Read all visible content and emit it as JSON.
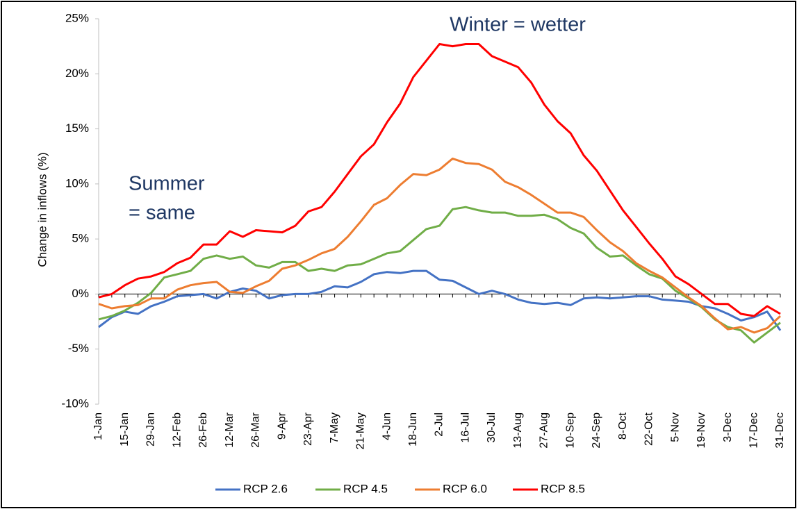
{
  "chart_data": {
    "type": "line",
    "y_label": "Change in inflows (%)",
    "annotations": [
      {
        "text": "Winter = wetter"
      },
      {
        "lines": [
          "Summer",
          "= same"
        ]
      }
    ],
    "categories": [
      "1-Jan",
      null,
      "15-Jan",
      null,
      "29-Jan",
      null,
      "12-Feb",
      null,
      "26-Feb",
      null,
      "12-Mar",
      null,
      "26-Mar",
      null,
      "9-Apr",
      null,
      "23-Apr",
      null,
      "7-May",
      null,
      "21-May",
      null,
      "4-Jun",
      null,
      "18-Jun",
      null,
      "2-Jul",
      null,
      "16-Jul",
      null,
      "30-Jul",
      null,
      "13-Aug",
      null,
      "27-Aug",
      null,
      "10-Sep",
      null,
      "24-Sep",
      null,
      "8-Oct",
      null,
      "22-Oct",
      null,
      "5-Nov",
      null,
      "19-Nov",
      null,
      "3-Dec",
      null,
      "17-Dec",
      null,
      "31-Dec"
    ],
    "series": [
      {
        "name": "RCP 2.6",
        "color": "#4472c4",
        "values": [
          -3.0,
          -2.1,
          -1.6,
          -1.8,
          -1.1,
          -0.7,
          -0.2,
          -0.1,
          0.0,
          -0.4,
          0.2,
          0.5,
          0.3,
          -0.4,
          -0.1,
          0.0,
          0.0,
          0.2,
          0.7,
          0.6,
          1.1,
          1.8,
          2.0,
          1.9,
          2.1,
          2.1,
          1.3,
          1.2,
          0.6,
          0.0,
          0.3,
          0.0,
          -0.5,
          -0.8,
          -0.9,
          -0.8,
          -1.0,
          -0.4,
          -0.3,
          -0.4,
          -0.3,
          -0.2,
          -0.2,
          -0.5,
          -0.6,
          -0.7,
          -1.1,
          -1.3,
          -1.8,
          -2.4,
          -2.1,
          -1.6,
          -3.3
        ]
      },
      {
        "name": "RCP 4.5",
        "color": "#70ad47",
        "values": [
          -2.3,
          -2.0,
          -1.5,
          -0.8,
          0.1,
          1.5,
          1.8,
          2.1,
          3.2,
          3.5,
          3.2,
          3.4,
          2.6,
          2.4,
          2.9,
          2.9,
          2.1,
          2.3,
          2.1,
          2.6,
          2.7,
          3.2,
          3.7,
          3.9,
          4.9,
          5.9,
          6.2,
          7.7,
          7.9,
          7.6,
          7.4,
          7.4,
          7.1,
          7.1,
          7.2,
          6.8,
          6.0,
          5.5,
          4.2,
          3.4,
          3.5,
          2.6,
          1.8,
          1.4,
          0.3,
          -0.4,
          -1.2,
          -2.3,
          -3.0,
          -3.3,
          -4.4,
          -3.5,
          -2.6
        ]
      },
      {
        "name": "RCP 6.0",
        "color": "#ed7d31",
        "values": [
          -0.9,
          -1.3,
          -1.1,
          -1.0,
          -0.4,
          -0.4,
          0.4,
          0.8,
          1.0,
          1.1,
          0.2,
          0.1,
          0.7,
          1.2,
          2.3,
          2.6,
          3.1,
          3.7,
          4.1,
          5.2,
          6.6,
          8.1,
          8.7,
          9.9,
          10.9,
          10.8,
          11.3,
          12.3,
          11.9,
          11.8,
          11.3,
          10.2,
          9.7,
          9.0,
          8.2,
          7.4,
          7.4,
          7.0,
          5.8,
          4.7,
          3.9,
          2.8,
          2.1,
          1.5,
          0.6,
          -0.3,
          -1.1,
          -2.2,
          -3.2,
          -3.0,
          -3.5,
          -3.1,
          -2.0
        ]
      },
      {
        "name": "RCP 8.5",
        "color": "#ff0000",
        "values": [
          -0.3,
          0.0,
          0.8,
          1.4,
          1.6,
          2.0,
          2.8,
          3.3,
          4.5,
          4.5,
          5.7,
          5.2,
          5.8,
          5.7,
          5.6,
          6.2,
          7.5,
          7.9,
          9.3,
          10.9,
          12.5,
          13.6,
          15.6,
          17.3,
          19.7,
          21.2,
          22.7,
          22.5,
          22.7,
          22.7,
          21.6,
          21.1,
          20.6,
          19.2,
          17.2,
          15.7,
          14.6,
          12.6,
          11.2,
          9.4,
          7.6,
          6.1,
          4.6,
          3.2,
          1.6,
          0.9,
          0.0,
          -0.9,
          -0.9,
          -1.8,
          -2.0,
          -1.1,
          -1.8
        ]
      }
    ],
    "ylim": [
      -10,
      25
    ],
    "yticks": [
      {
        "value": -10,
        "label": "-10%"
      },
      {
        "value": -5,
        "label": "-5%"
      },
      {
        "value": 0,
        "label": "0%"
      },
      {
        "value": 5,
        "label": "5%"
      },
      {
        "value": 10,
        "label": "10%"
      },
      {
        "value": 15,
        "label": "15%"
      },
      {
        "value": 20,
        "label": "20%"
      },
      {
        "value": 25,
        "label": "25%"
      }
    ],
    "grid": false,
    "legend": "bottom"
  }
}
